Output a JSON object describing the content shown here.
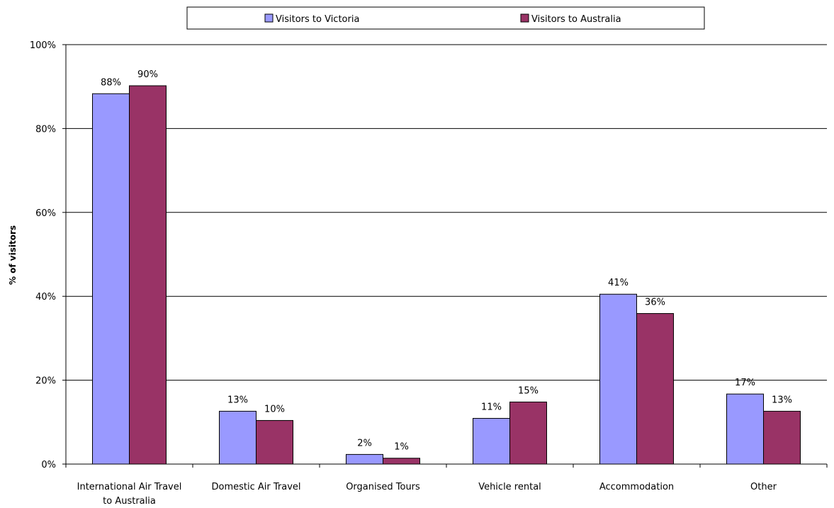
{
  "chart_data": {
    "type": "bar",
    "categories": [
      [
        "International Air Travel",
        "to Australia"
      ],
      [
        "Domestic Air Travel"
      ],
      [
        "Organised Tours"
      ],
      [
        "Vehicle rental"
      ],
      [
        "Accommodation"
      ],
      [
        "Other"
      ]
    ],
    "series": [
      {
        "name": "Visitors to Victoria",
        "color": "#9999ff",
        "values": [
          88.3,
          12.6,
          2.3,
          10.9,
          40.5,
          16.7
        ],
        "labels": [
          "88%",
          "13%",
          "2%",
          "11%",
          "41%",
          "17%"
        ]
      },
      {
        "name": "Visitors to Australia",
        "color": "#993366",
        "values": [
          90.2,
          10.4,
          1.4,
          14.8,
          35.9,
          12.6
        ],
        "labels": [
          "90%",
          "10%",
          "1%",
          "15%",
          "36%",
          "13%"
        ]
      }
    ],
    "ylabel": "% of visitors",
    "ylim": [
      0,
      100
    ],
    "yticks": [
      0,
      20,
      40,
      60,
      80,
      100
    ],
    "ytick_labels": [
      "0%",
      "20%",
      "40%",
      "60%",
      "80%",
      "100%"
    ],
    "grid": true,
    "legend_position": "top"
  }
}
